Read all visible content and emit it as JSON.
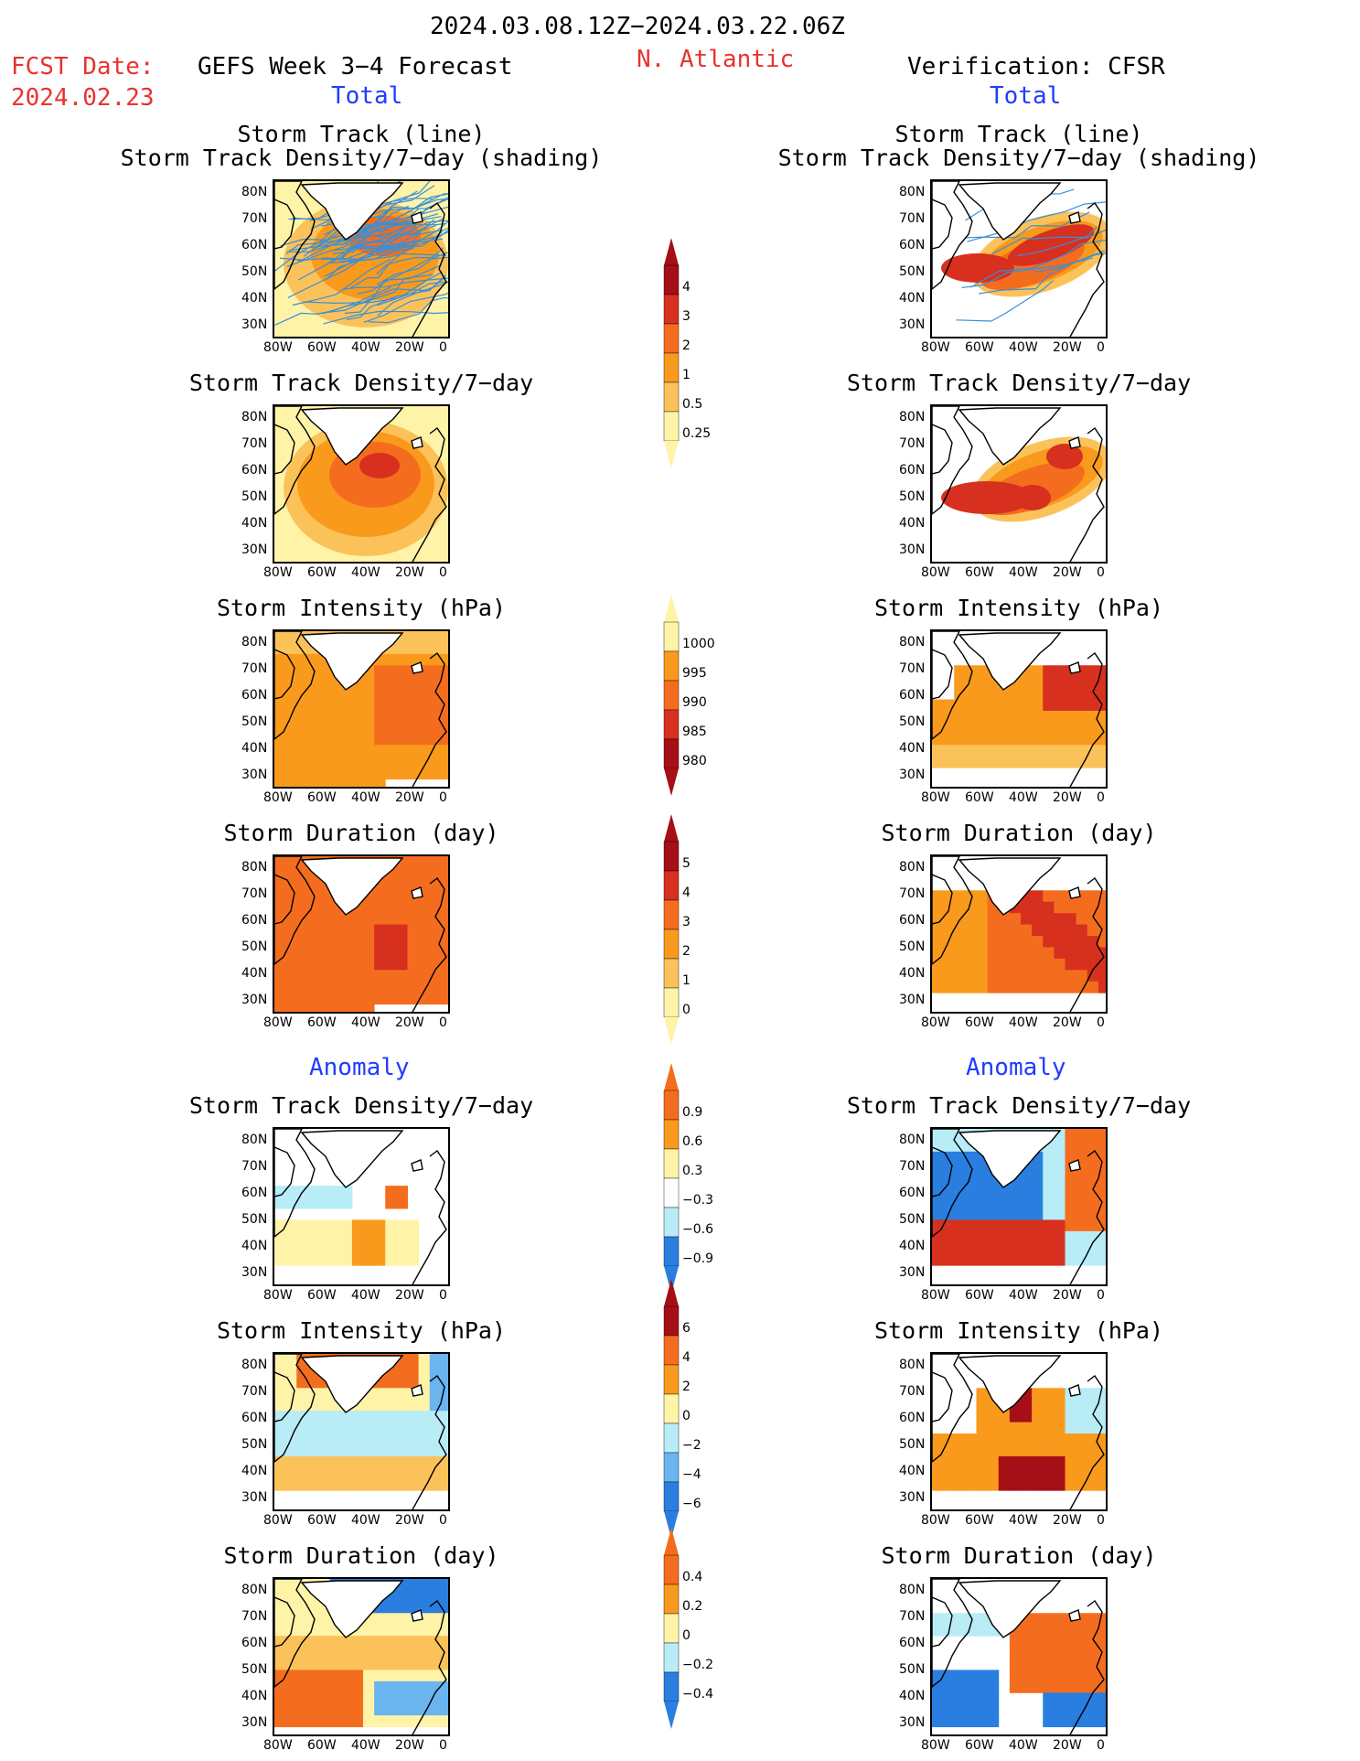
{
  "header": {
    "date_range": "2024.03.08.12Z−2024.03.22.06Z",
    "fcst_label": "FCST Date:",
    "fcst_date": "2024.02.23",
    "forecast_title": "GEFS Week 3−4 Forecast",
    "region": "N. Atlantic",
    "verification": "Verification: CFSR"
  },
  "sections": {
    "total": "Total",
    "anomaly": "Anomaly"
  },
  "panel_titles": {
    "track_line": "Storm Track (line)",
    "track_shading": "Storm Track Density/7−day (shading)",
    "density": "Storm Track Density/7−day",
    "intensity": "Storm Intensity (hPa)",
    "duration": "Storm Duration (day)"
  },
  "axes": {
    "lat_ticks": [
      "80N",
      "70N",
      "60N",
      "50N",
      "40N",
      "30N"
    ],
    "lon_ticks": [
      "80W",
      "60W",
      "40W",
      "20W",
      "0"
    ]
  },
  "colorbars": {
    "density_total": [
      "4",
      "3",
      "2",
      "1",
      "0.5",
      "0.25"
    ],
    "intensity_total": [
      "1000",
      "995",
      "990",
      "985",
      "980"
    ],
    "duration_total": [
      "5",
      "4",
      "3",
      "2",
      "1",
      "0"
    ],
    "density_anom": [
      "0.9",
      "0.6",
      "0.3",
      "−0.3",
      "−0.6",
      "−0.9"
    ],
    "intensity_anom": [
      "6",
      "4",
      "2",
      "0",
      "−2",
      "−4",
      "−6"
    ],
    "duration_anom": [
      "0.4",
      "0.2",
      "0",
      "−0.2",
      "−0.4"
    ]
  },
  "colors": {
    "dark_red": "#a50f15",
    "red": "#d7301f",
    "orange_red": "#f46d1e",
    "orange": "#f99a1c",
    "light_orange": "#fcc25a",
    "pale_yellow": "#fff3a8",
    "light_blue": "#b8ecf7",
    "mid_blue": "#6ab4f0",
    "blue": "#2a7ee0",
    "dark_blue": "#1e5bc6",
    "track_line": "#3a8fd6"
  }
}
